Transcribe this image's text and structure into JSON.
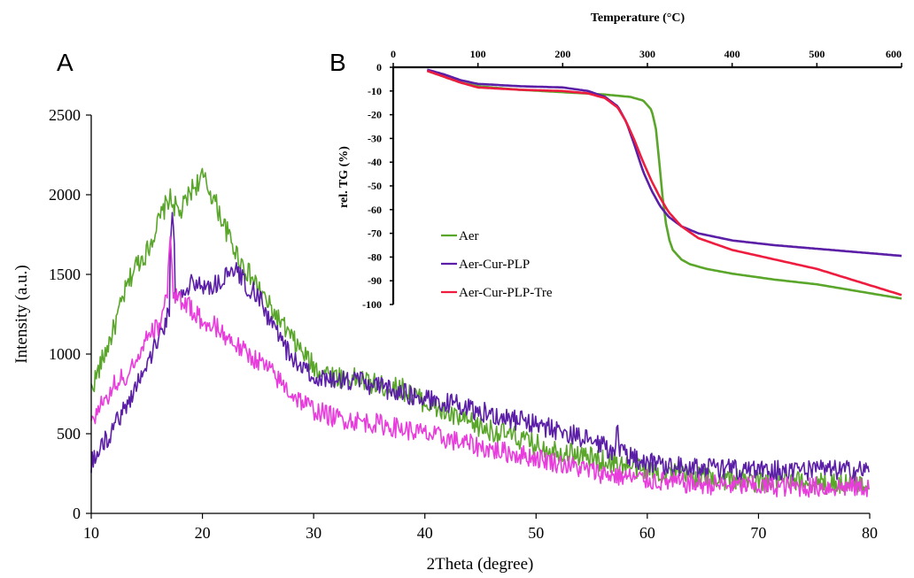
{
  "panel_labels": {
    "a": "A",
    "b": "B"
  },
  "colors": {
    "green": "#5aa62b",
    "purple": "#5b1ea6",
    "magenta": "#e83ddc",
    "red": "#ee1c3e",
    "axis": "#000000"
  },
  "chart_data": [
    {
      "type": "line",
      "panel": "A",
      "title": "",
      "xlabel": "2Theta (degree)",
      "ylabel": "Intensity (a.u.)",
      "xlim": [
        10,
        80
      ],
      "ylim": [
        0,
        2500
      ],
      "x_ticks": [
        10,
        20,
        30,
        40,
        50,
        60,
        70,
        80
      ],
      "y_ticks": [
        0,
        500,
        1000,
        1500,
        2000,
        2500
      ],
      "grid": false,
      "legend": "none",
      "series": [
        {
          "color_key": "green",
          "noise": 70,
          "x": [
            10,
            11,
            12,
            13,
            14,
            15,
            16,
            17,
            18,
            19,
            20,
            21,
            22,
            23,
            24,
            25,
            26,
            28,
            30,
            32,
            34,
            36,
            38,
            40,
            42,
            45,
            48,
            50,
            53,
            56,
            58,
            60,
            63,
            66,
            70,
            75,
            80
          ],
          "y": [
            780,
            960,
            1150,
            1380,
            1560,
            1640,
            1820,
            1980,
            1880,
            2030,
            2110,
            1980,
            1800,
            1640,
            1520,
            1420,
            1300,
            1100,
            920,
            860,
            840,
            800,
            780,
            700,
            620,
            540,
            480,
            430,
            380,
            330,
            300,
            270,
            240,
            220,
            200,
            190,
            190
          ]
        },
        {
          "color_key": "purple",
          "noise": 65,
          "spikes": [
            [
              17.3,
              1900
            ],
            [
              57.3,
              600
            ]
          ],
          "x": [
            10,
            11,
            12,
            13,
            14,
            15,
            16,
            17,
            18,
            19,
            20,
            21,
            22,
            23,
            24,
            25,
            26,
            28,
            30,
            32,
            34,
            36,
            38,
            40,
            43,
            46,
            50,
            53,
            56,
            58,
            60,
            63,
            66,
            70,
            75,
            80
          ],
          "y": [
            310,
            420,
            540,
            660,
            790,
            940,
            1090,
            1250,
            1360,
            1440,
            1440,
            1420,
            1480,
            1520,
            1430,
            1360,
            1220,
            970,
            860,
            830,
            830,
            790,
            760,
            720,
            680,
            620,
            560,
            500,
            420,
            370,
            320,
            300,
            280,
            270,
            270,
            270
          ]
        },
        {
          "color_key": "magenta",
          "noise": 65,
          "spikes": [
            [
              17.1,
              1750
            ]
          ],
          "x": [
            10,
            11,
            12,
            13,
            14,
            15,
            16,
            17,
            18,
            19,
            20,
            21,
            22,
            23,
            24,
            25,
            26,
            28,
            30,
            32,
            34,
            36,
            38,
            40,
            43,
            46,
            50,
            53,
            56,
            58,
            60,
            63,
            66,
            70,
            75,
            80
          ],
          "y": [
            580,
            680,
            800,
            860,
            960,
            1100,
            1170,
            1420,
            1340,
            1280,
            1200,
            1180,
            1120,
            1060,
            1000,
            960,
            900,
            750,
            650,
            600,
            580,
            560,
            530,
            500,
            450,
            400,
            350,
            300,
            250,
            230,
            210,
            190,
            180,
            170,
            165,
            165
          ]
        }
      ]
    },
    {
      "type": "line",
      "panel": "B",
      "title": "Temperature (°C)",
      "xlabel": "Temperature (°C)",
      "ylabel": "rel. TG (%)",
      "xlim": [
        0,
        600
      ],
      "ylim": [
        -100,
        0
      ],
      "x_ticks": [
        0,
        100,
        200,
        300,
        400,
        500,
        600
      ],
      "y_ticks": [
        0,
        -10,
        -20,
        -30,
        -40,
        -50,
        -60,
        -70,
        -80,
        -90,
        -100
      ],
      "grid": false,
      "legend": "left",
      "series": [
        {
          "name": "Aer",
          "color_key": "green",
          "x": [
            40,
            60,
            80,
            100,
            150,
            200,
            250,
            280,
            295,
            305,
            310,
            314,
            318,
            322,
            326,
            330,
            340,
            350,
            370,
            400,
            450,
            500,
            550,
            600
          ],
          "y": [
            -1.5,
            -4,
            -6.5,
            -8,
            -9.5,
            -10.5,
            -11.5,
            -12.5,
            -14,
            -18,
            -26,
            -40,
            -55,
            -66,
            -73,
            -77,
            -81,
            -83,
            -85,
            -87,
            -89.5,
            -91.5,
            -94.5,
            -97.5
          ]
        },
        {
          "name": "Aer-Cur-PLP",
          "color_key": "purple",
          "x": [
            40,
            60,
            80,
            100,
            150,
            200,
            230,
            250,
            265,
            275,
            285,
            295,
            305,
            315,
            325,
            340,
            360,
            400,
            450,
            500,
            550,
            600
          ],
          "y": [
            -1,
            -3,
            -5.5,
            -7,
            -8,
            -8.5,
            -10,
            -12.5,
            -16.5,
            -23,
            -33,
            -44,
            -52,
            -58.5,
            -63,
            -67,
            -70,
            -73,
            -75,
            -76.5,
            -78,
            -79.5
          ]
        },
        {
          "name": "Aer-Cur-PLP-Tre",
          "color_key": "red",
          "x": [
            40,
            60,
            80,
            100,
            150,
            200,
            230,
            250,
            265,
            275,
            285,
            295,
            305,
            315,
            325,
            340,
            360,
            400,
            450,
            500,
            550,
            600
          ],
          "y": [
            -1.5,
            -4,
            -6.5,
            -8.5,
            -9.5,
            -10,
            -11,
            -13,
            -17,
            -23,
            -31,
            -40,
            -48,
            -55,
            -61,
            -67,
            -72,
            -77,
            -81,
            -85,
            -90.5,
            -96
          ]
        }
      ]
    }
  ]
}
